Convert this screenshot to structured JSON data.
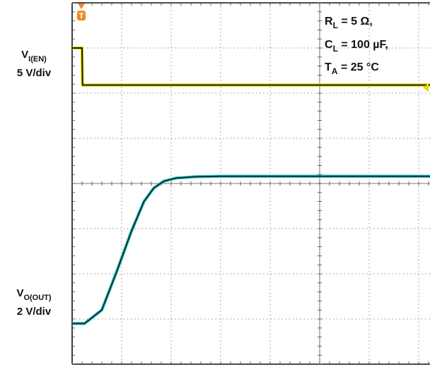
{
  "chart_data": {
    "type": "line",
    "title": "",
    "xlabel": "",
    "ylabel": "",
    "grid": {
      "x_divisions": 10,
      "y_divisions": 8,
      "minor_ticks_per_division": 5,
      "style": "dotted",
      "center_axes": "ticked"
    },
    "trigger_marker": {
      "label": "T",
      "color": "#f08a24",
      "position_div": 0.2
    },
    "conditions": [
      {
        "sym": "R",
        "sub": "L",
        "rest": " = 5 Ω,"
      },
      {
        "sym": "C",
        "sub": "L",
        "rest": " = 100 µF,"
      },
      {
        "sym": "T",
        "sub": "A",
        "rest": " = 25 °C"
      }
    ],
    "series": [
      {
        "channel_label": {
          "sym": "V",
          "sub": "I(EN)"
        },
        "scale_label": "5 V/div",
        "color": "#e8d800",
        "trace_color": "#1e1e00",
        "ground_marker_color": "#e8d800",
        "x_div": [
          0,
          0.2,
          0.21,
          10
        ],
        "y_div": [
          7.0,
          7.0,
          6.18,
          6.18
        ]
      },
      {
        "channel_label": {
          "sym": "V",
          "sub": "O(OUT)"
        },
        "scale_label": "2 V/div",
        "color": "#2ec9c9",
        "trace_color": "#0f2b2b",
        "x_div": [
          0,
          0.25,
          0.6,
          0.9,
          1.2,
          1.45,
          1.65,
          1.85,
          2.1,
          2.5,
          3.0,
          10
        ],
        "y_div": [
          0.9,
          0.9,
          1.2,
          2.05,
          2.95,
          3.6,
          3.9,
          4.05,
          4.12,
          4.15,
          4.16,
          4.16
        ]
      }
    ]
  }
}
